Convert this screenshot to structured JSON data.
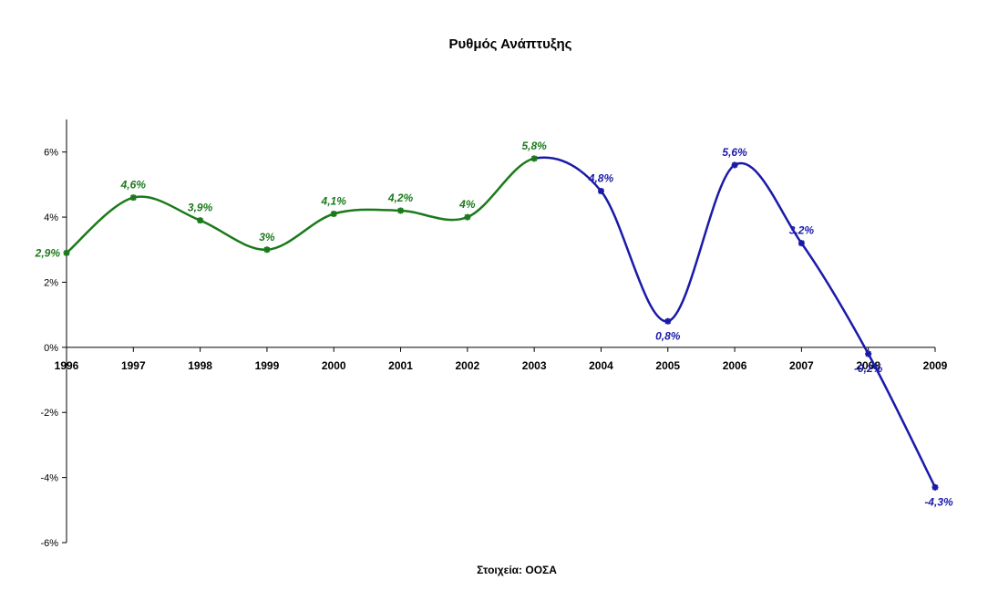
{
  "chart_data": {
    "type": "line",
    "title": "Ρυθμός Ανάπτυξης",
    "source": "Στοιχεία: ΟΟΣΑ",
    "x": [
      "1996",
      "1997",
      "1998",
      "1999",
      "2000",
      "2001",
      "2002",
      "2003",
      "2004",
      "2005",
      "2006",
      "2007",
      "2008",
      "2009"
    ],
    "values": [
      2.9,
      4.6,
      3.9,
      3.0,
      4.1,
      4.2,
      4.0,
      5.8,
      4.8,
      0.8,
      5.6,
      3.2,
      -0.2,
      -4.3
    ],
    "data_labels": [
      "2,9%",
      "4,6%",
      "3,9%",
      "3%",
      "4,1%",
      "4,2%",
      "4%",
      "5,8%",
      "4,8%",
      "0,8%",
      "5,6%",
      "3,2%",
      "-0,2%",
      "-4,3%"
    ],
    "y_ticks": [
      6,
      4,
      2,
      0,
      -2,
      -4,
      -6
    ],
    "y_tick_labels": [
      "6%",
      "4%",
      "2%",
      "0%",
      "-2%",
      "-4%",
      "-6%"
    ],
    "ylim": [
      -6,
      7
    ],
    "smooth": true,
    "grid": false,
    "legend": "none",
    "segments": [
      {
        "from_index": 0,
        "to_index": 7,
        "color": "#1a7a1a"
      },
      {
        "from_index": 7,
        "to_index": 13,
        "color": "#1a1aa8"
      }
    ]
  }
}
